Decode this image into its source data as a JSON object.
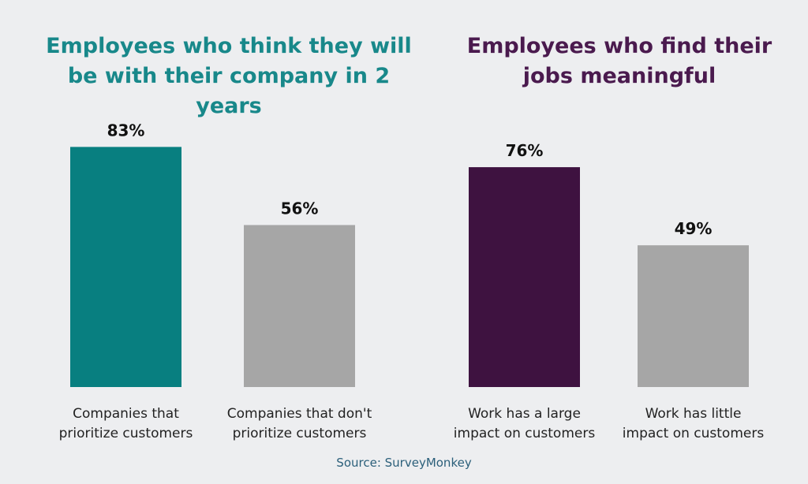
{
  "colors": {
    "background": "#edeef0",
    "teal": "#087f80",
    "purple": "#3e1240",
    "gray": "#a6a6a6",
    "title_left": "#18888a",
    "title_right": "#4a1a4e",
    "source": "#2b5f7a"
  },
  "chart_data": [
    {
      "type": "bar",
      "title": "Employees who think they will be with their company in 2 years",
      "categories": [
        "Companies that\nprioritize customers",
        "Companies that don't\nprioritize customers"
      ],
      "values": [
        83,
        56
      ],
      "value_labels": [
        "83%",
        "56%"
      ],
      "bar_colors": [
        "#087f80",
        "#a6a6a6"
      ],
      "ylim": [
        0,
        100
      ],
      "unit": "%",
      "grid": false,
      "legend": "none"
    },
    {
      "type": "bar",
      "title": "Employees who find their jobs meaningful",
      "categories": [
        "Work has a large\nimpact on customers",
        "Work has little\nimpact on customers"
      ],
      "values": [
        76,
        49
      ],
      "value_labels": [
        "76%",
        "49%"
      ],
      "bar_colors": [
        "#3e1240",
        "#a6a6a6"
      ],
      "ylim": [
        0,
        100
      ],
      "unit": "%",
      "grid": false,
      "legend": "none"
    }
  ],
  "source": "Source: SurveyMonkey"
}
